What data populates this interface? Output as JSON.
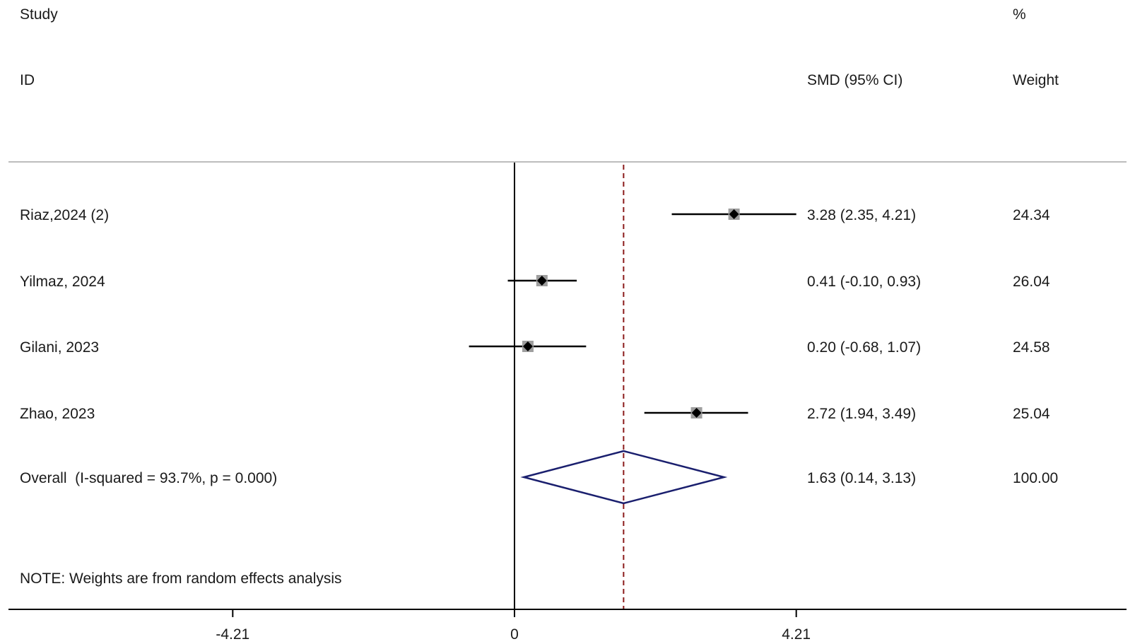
{
  "header": {
    "study_label": "Study",
    "id_label": "ID",
    "effect_label": "SMD (95% CI)",
    "pct_label": "%",
    "weight_label": "Weight"
  },
  "note": "NOTE: Weights are from random effects analysis",
  "colors": {
    "text": "#1a1a1a",
    "ci_line": "#000000",
    "marker": "#000000",
    "weight_box": "#9e9e9e",
    "overall_diamond": "#1a1f6e",
    "overall_line": "#8b1a1a",
    "separator": "#bdbdbd"
  },
  "chart_data": {
    "type": "forest",
    "measure": "SMD",
    "null_value": 0,
    "ticks": [
      -4.21,
      0,
      4.21
    ],
    "tick_labels": [
      "-4.21",
      "0",
      "4.21"
    ],
    "xlim": [
      -7.5,
      9.2
    ],
    "studies": [
      {
        "id": "Riaz,2024 (2)",
        "smd": 3.28,
        "ci_low": 2.35,
        "ci_high": 4.21,
        "weight": 24.34,
        "effect_text": "3.28 (2.35, 4.21)",
        "weight_text": "24.34"
      },
      {
        "id": "Yilmaz, 2024",
        "smd": 0.41,
        "ci_low": -0.1,
        "ci_high": 0.93,
        "weight": 26.04,
        "effect_text": "0.41 (-0.10, 0.93)",
        "weight_text": "26.04"
      },
      {
        "id": "Gilani, 2023",
        "smd": 0.2,
        "ci_low": -0.68,
        "ci_high": 1.07,
        "weight": 24.58,
        "effect_text": "0.20 (-0.68, 1.07)",
        "weight_text": "24.58"
      },
      {
        "id": "Zhao, 2023",
        "smd": 2.72,
        "ci_low": 1.94,
        "ci_high": 3.49,
        "weight": 25.04,
        "effect_text": "2.72 (1.94, 3.49)",
        "weight_text": "25.04"
      }
    ],
    "overall": {
      "label": "Overall  (I-squared = 93.7%, p = 0.000)",
      "smd": 1.63,
      "ci_low": 0.14,
      "ci_high": 3.13,
      "weight": 100.0,
      "effect_text": "1.63 (0.14, 3.13)",
      "weight_text": "100.00"
    }
  }
}
